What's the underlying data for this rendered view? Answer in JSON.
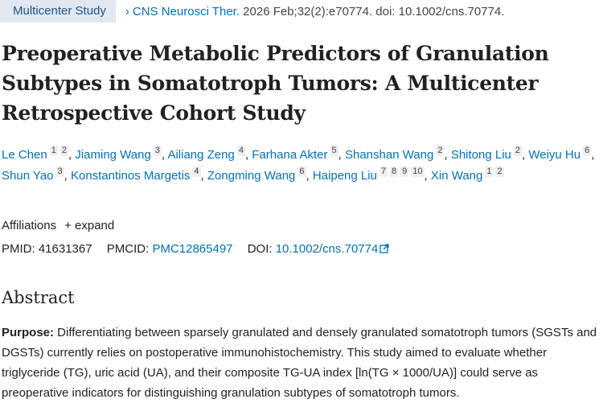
{
  "header": {
    "badge": "Multicenter Study",
    "journal": "CNS Neurosci Ther.",
    "citation": " 2026 Feb;32(2):e70774. doi: 10.1002/cns.70774."
  },
  "title": "Preoperative Metabolic Predictors of Granulation Subtypes in Somatotroph Tumors: A Multicenter Retrospective Cohort Study",
  "authors": [
    {
      "name": "Le Chen",
      "affs": [
        "1",
        "2"
      ]
    },
    {
      "name": "Jiaming Wang",
      "affs": [
        "3"
      ]
    },
    {
      "name": "Ailiang Zeng",
      "affs": [
        "4"
      ]
    },
    {
      "name": "Farhana Akter",
      "affs": [
        "5"
      ]
    },
    {
      "name": "Shanshan Wang",
      "affs": [
        "2"
      ]
    },
    {
      "name": "Shitong Liu",
      "affs": [
        "2"
      ]
    },
    {
      "name": "Weiyu Hu",
      "affs": [
        "6"
      ]
    },
    {
      "name": "Shun Yao",
      "affs": [
        "3"
      ]
    },
    {
      "name": "Konstantinos Margetis",
      "affs": [
        "4"
      ]
    },
    {
      "name": "Zongming Wang",
      "affs": [
        "6"
      ]
    },
    {
      "name": "Haipeng Liu",
      "affs": [
        "7",
        "8",
        "9",
        "10"
      ]
    },
    {
      "name": "Xin Wang",
      "affs": [
        "1",
        "2"
      ]
    }
  ],
  "affiliations": {
    "label": "Affiliations",
    "expand": "+ expand"
  },
  "ids": {
    "pmid_label": "PMID:",
    "pmid": "41631367",
    "pmcid_label": "PMCID:",
    "pmcid": "PMC12865497",
    "doi_label": "DOI:",
    "doi": "10.1002/cns.70774"
  },
  "abstract": {
    "heading": "Abstract",
    "purpose_label": "Purpose:",
    "purpose_text": " Differentiating between sparsely granulated and densely granulated somatotroph tumors (SGSTs and DGSTs) currently relies on postoperative immunohistochemistry. This study aimed to evaluate whether triglyceride (TG), uric acid (UA), and their composite TG-UA index [ln(TG × 1000/UA)] could serve as preoperative indicators for distinguishing granulation subtypes of somatotroph tumors."
  }
}
